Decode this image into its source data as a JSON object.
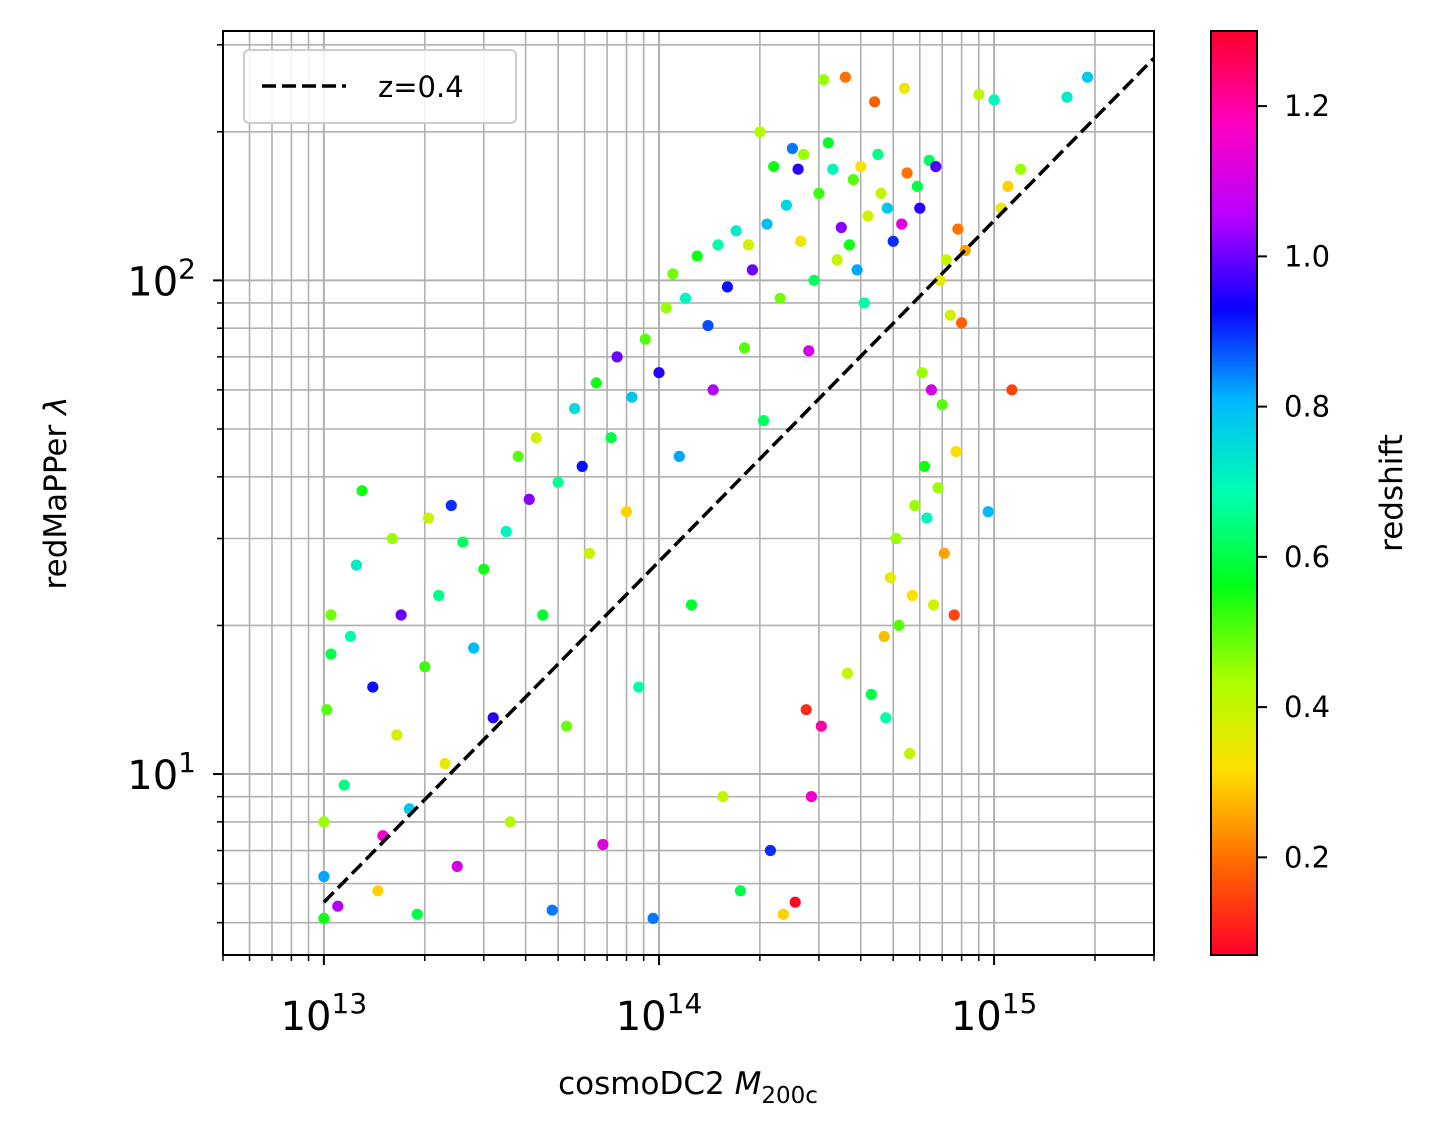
{
  "chart_data": {
    "type": "scatter",
    "title": "",
    "xlabel": "cosmoDC2 M_200c",
    "xlabel_parts": {
      "prefix": "cosmoDC2 ",
      "symbol": "M",
      "subscript": "200c"
    },
    "ylabel": "redMaPPer λ",
    "ylabel_parts": {
      "prefix": "redMaPPer ",
      "symbol": "λ"
    },
    "xscale": "log",
    "yscale": "log",
    "xlim": [
      5000000000000.0,
      3000000000000000.0
    ],
    "ylim": [
      4.3,
      320
    ],
    "x_major_ticks": [
      {
        "value": 10000000000000.0,
        "base": "10",
        "exp": "13"
      },
      {
        "value": 100000000000000.0,
        "base": "10",
        "exp": "14"
      },
      {
        "value": 1000000000000000.0,
        "base": "10",
        "exp": "15"
      }
    ],
    "y_major_ticks": [
      {
        "value": 10,
        "base": "10",
        "exp": "1"
      },
      {
        "value": 100,
        "base": "10",
        "exp": "2"
      }
    ],
    "grid": {
      "major": true,
      "minor": true
    },
    "legend": {
      "position": "top-left",
      "entries": [
        {
          "label": "z=0.4",
          "style": "dashed",
          "color": "#000000"
        }
      ]
    },
    "reference_line": {
      "label": "z=0.4",
      "x": [
        10000000000000.0,
        3000000000000000.0
      ],
      "y": [
        5.5,
        282
      ]
    },
    "colorbar": {
      "label": "redshift",
      "range": [
        0.07,
        1.3
      ],
      "ticks": [
        {
          "value": 0.2,
          "label": "0.2"
        },
        {
          "value": 0.4,
          "label": "0.4"
        },
        {
          "value": 0.6,
          "label": "0.6"
        },
        {
          "value": 0.8,
          "label": "0.8"
        },
        {
          "value": 1.0,
          "label": "1.0"
        },
        {
          "value": 1.2,
          "label": "1.2"
        }
      ],
      "colormap": "gist_rainbow_r",
      "colormap_stops": [
        "#ff0029",
        "#ff6a00",
        "#ffe000",
        "#a8ff00",
        "#00ff16",
        "#00ffb0",
        "#00b8ff",
        "#0a00ff",
        "#b800ff",
        "#ff00c0",
        "#ff0029"
      ]
    },
    "series": [
      {
        "lambda_min": 5,
        "lambda_min_note": ""
      }
    ],
    "points": [
      [
        10000000000000.0,
        5.1,
        0.55
      ],
      [
        10000000000000.0,
        6.2,
        0.82
      ],
      [
        10000000000000.0,
        8.0,
        0.45
      ],
      [
        10200000000000.0,
        13.5,
        0.5
      ],
      [
        10500000000000.0,
        17.5,
        0.6
      ],
      [
        10500000000000.0,
        21.0,
        0.48
      ],
      [
        11000000000000.0,
        5.4,
        1.05
      ],
      [
        11500000000000.0,
        9.5,
        0.65
      ],
      [
        12000000000000.0,
        19.0,
        0.68
      ],
      [
        12500000000000.0,
        26.5,
        0.72
      ],
      [
        13000000000000.0,
        37.5,
        0.55
      ],
      [
        14000000000000.0,
        15.0,
        0.92
      ],
      [
        14500000000000.0,
        5.8,
        0.3
      ],
      [
        15000000000000.0,
        7.5,
        1.15
      ],
      [
        16000000000000.0,
        30.0,
        0.45
      ],
      [
        16500000000000.0,
        12.0,
        0.38
      ],
      [
        17000000000000.0,
        21.0,
        1.0
      ],
      [
        18000000000000.0,
        8.5,
        0.78
      ],
      [
        19000000000000.0,
        5.2,
        0.6
      ],
      [
        20000000000000.0,
        16.5,
        0.52
      ],
      [
        20500000000000.0,
        33.0,
        0.4
      ],
      [
        22000000000000.0,
        23.0,
        0.65
      ],
      [
        23000000000000.0,
        10.5,
        0.35
      ],
      [
        24000000000000.0,
        35.0,
        0.9
      ],
      [
        25000000000000.0,
        6.5,
        1.1
      ],
      [
        26000000000000.0,
        29.5,
        0.62
      ],
      [
        28000000000000.0,
        18.0,
        0.8
      ],
      [
        30000000000000.0,
        26.0,
        0.55
      ],
      [
        32000000000000.0,
        13.0,
        0.95
      ],
      [
        35000000000000.0,
        31.0,
        0.7
      ],
      [
        36000000000000.0,
        8.0,
        0.42
      ],
      [
        38000000000000.0,
        44.0,
        0.5
      ],
      [
        41000000000000.0,
        36.0,
        1.02
      ],
      [
        43000000000000.0,
        48.0,
        0.38
      ],
      [
        45000000000000.0,
        21.0,
        0.58
      ],
      [
        48000000000000.0,
        5.3,
        0.85
      ],
      [
        50000000000000.0,
        39.0,
        0.66
      ],
      [
        53000000000000.0,
        12.5,
        0.48
      ],
      [
        56000000000000.0,
        55.0,
        0.75
      ],
      [
        59000000000000.0,
        42.0,
        0.92
      ],
      [
        62000000000000.0,
        28.0,
        0.4
      ],
      [
        65000000000000.0,
        62.0,
        0.55
      ],
      [
        68000000000000.0,
        7.2,
        1.12
      ],
      [
        72000000000000.0,
        48.0,
        0.6
      ],
      [
        75000000000000.0,
        70.0,
        1.0
      ],
      [
        80000000000000.0,
        34.0,
        0.3
      ],
      [
        83000000000000.0,
        58.0,
        0.78
      ],
      [
        87000000000000.0,
        15.0,
        0.68
      ],
      [
        91000000000000.0,
        76.0,
        0.5
      ],
      [
        96000000000000.0,
        5.1,
        0.85
      ],
      [
        100000000000000.0,
        65.0,
        0.95
      ],
      [
        105000000000000.0,
        88.0,
        0.45
      ],
      [
        110000000000000.0,
        103.0,
        0.48
      ],
      [
        115000000000000.0,
        44.0,
        0.82
      ],
      [
        120000000000000.0,
        92.0,
        0.7
      ],
      [
        125000000000000.0,
        22.0,
        0.58
      ],
      [
        130000000000000.0,
        112.0,
        0.55
      ],
      [
        140000000000000.0,
        81.0,
        0.88
      ],
      [
        145000000000000.0,
        60.0,
        1.05
      ],
      [
        150000000000000.0,
        118.0,
        0.68
      ],
      [
        155000000000000.0,
        9.0,
        0.4
      ],
      [
        160000000000000.0,
        97.0,
        0.92
      ],
      [
        170000000000000.0,
        126.0,
        0.72
      ],
      [
        175000000000000.0,
        5.8,
        0.6
      ],
      [
        180000000000000.0,
        73.0,
        0.5
      ],
      [
        185000000000000.0,
        118.0,
        0.38
      ],
      [
        190000000000000.0,
        105.0,
        1.0
      ],
      [
        200000000000000.0,
        200.0,
        0.42
      ],
      [
        205000000000000.0,
        52.0,
        0.62
      ],
      [
        210000000000000.0,
        130.0,
        0.8
      ],
      [
        215000000000000.0,
        7.0,
        0.9
      ],
      [
        220000000000000.0,
        170.0,
        0.55
      ],
      [
        230000000000000.0,
        92.0,
        0.48
      ],
      [
        235000000000000.0,
        5.2,
        0.3
      ],
      [
        240000000000000.0,
        142.0,
        0.75
      ],
      [
        250000000000000.0,
        185.0,
        0.85
      ],
      [
        255000000000000.0,
        5.5,
        0.08
      ],
      [
        260000000000000.0,
        168.0,
        0.95
      ],
      [
        265000000000000.0,
        120.0,
        0.35
      ],
      [
        270000000000000.0,
        180.0,
        0.45
      ],
      [
        275000000000000.0,
        13.5,
        0.12
      ],
      [
        280000000000000.0,
        72.0,
        1.1
      ],
      [
        285000000000000.0,
        9.0,
        1.15
      ],
      [
        290000000000000.0,
        100.0,
        0.62
      ],
      [
        300000000000000.0,
        150.0,
        0.52
      ],
      [
        305000000000000.0,
        12.5,
        1.2
      ],
      [
        310000000000000.0,
        255.0,
        0.45
      ],
      [
        320000000000000.0,
        190.0,
        0.58
      ],
      [
        330000000000000.0,
        168.0,
        0.7
      ],
      [
        340000000000000.0,
        110.0,
        0.4
      ],
      [
        350000000000000.0,
        128.0,
        1.02
      ],
      [
        360000000000000.0,
        258.0,
        0.2
      ],
      [
        365000000000000.0,
        16.0,
        0.4
      ],
      [
        370000000000000.0,
        118.0,
        0.55
      ],
      [
        380000000000000.0,
        160.0,
        0.5
      ],
      [
        390000000000000.0,
        105.0,
        0.82
      ],
      [
        400000000000000.0,
        170.0,
        0.32
      ],
      [
        410000000000000.0,
        90.0,
        0.68
      ],
      [
        420000000000000.0,
        135.0,
        0.38
      ],
      [
        430000000000000.0,
        14.5,
        0.6
      ],
      [
        440000000000000.0,
        230.0,
        0.18
      ],
      [
        450000000000000.0,
        180.0,
        0.65
      ],
      [
        460000000000000.0,
        150.0,
        0.4
      ],
      [
        470000000000000.0,
        19.0,
        0.28
      ],
      [
        475000000000000.0,
        13.0,
        0.68
      ],
      [
        480000000000000.0,
        140.0,
        0.78
      ],
      [
        490000000000000.0,
        25.0,
        0.35
      ],
      [
        500000000000000.0,
        120.0,
        0.9
      ],
      [
        510000000000000.0,
        30.0,
        0.45
      ],
      [
        520000000000000.0,
        20.0,
        0.5
      ],
      [
        530000000000000.0,
        130.0,
        1.12
      ],
      [
        540000000000000.0,
        245.0,
        0.35
      ],
      [
        550000000000000.0,
        165.0,
        0.2
      ],
      [
        560000000000000.0,
        11.0,
        0.4
      ],
      [
        570000000000000.0,
        23.0,
        0.32
      ],
      [
        580000000000000.0,
        35.0,
        0.45
      ],
      [
        590000000000000.0,
        155.0,
        0.6
      ],
      [
        600000000000000.0,
        140.0,
        0.95
      ],
      [
        610000000000000.0,
        65.0,
        0.45
      ],
      [
        620000000000000.0,
        42.0,
        0.55
      ],
      [
        630000000000000.0,
        33.0,
        0.7
      ],
      [
        640000000000000.0,
        175.0,
        0.62
      ],
      [
        650000000000000.0,
        60.0,
        1.1
      ],
      [
        660000000000000.0,
        22.0,
        0.38
      ],
      [
        670000000000000.0,
        170.0,
        0.98
      ],
      [
        680000000000000.0,
        38.0,
        0.45
      ],
      [
        690000000000000.0,
        100.0,
        0.35
      ],
      [
        700000000000000.0,
        56.0,
        0.5
      ],
      [
        710000000000000.0,
        28.0,
        0.25
      ],
      [
        720000000000000.0,
        110.0,
        0.4
      ],
      [
        740000000000000.0,
        85.0,
        0.38
      ],
      [
        760000000000000.0,
        21.0,
        0.15
      ],
      [
        770000000000000.0,
        45.0,
        0.32
      ],
      [
        780000000000000.0,
        127.0,
        0.2
      ],
      [
        800000000000000.0,
        82.0,
        0.18
      ],
      [
        820000000000000.0,
        115.0,
        0.25
      ],
      [
        900000000000000.0,
        238.0,
        0.4
      ],
      [
        960000000000000.0,
        34.0,
        0.8
      ],
      [
        1000000000000000.0,
        232.0,
        0.7
      ],
      [
        1050000000000000.0,
        140.0,
        0.35
      ],
      [
        1100000000000000.0,
        155.0,
        0.3
      ],
      [
        1130000000000000.0,
        60.0,
        0.15
      ],
      [
        1200000000000000.0,
        168.0,
        0.45
      ],
      [
        1650000000000000.0,
        235.0,
        0.72
      ],
      [
        1900000000000000.0,
        258.0,
        0.78
      ]
    ]
  }
}
